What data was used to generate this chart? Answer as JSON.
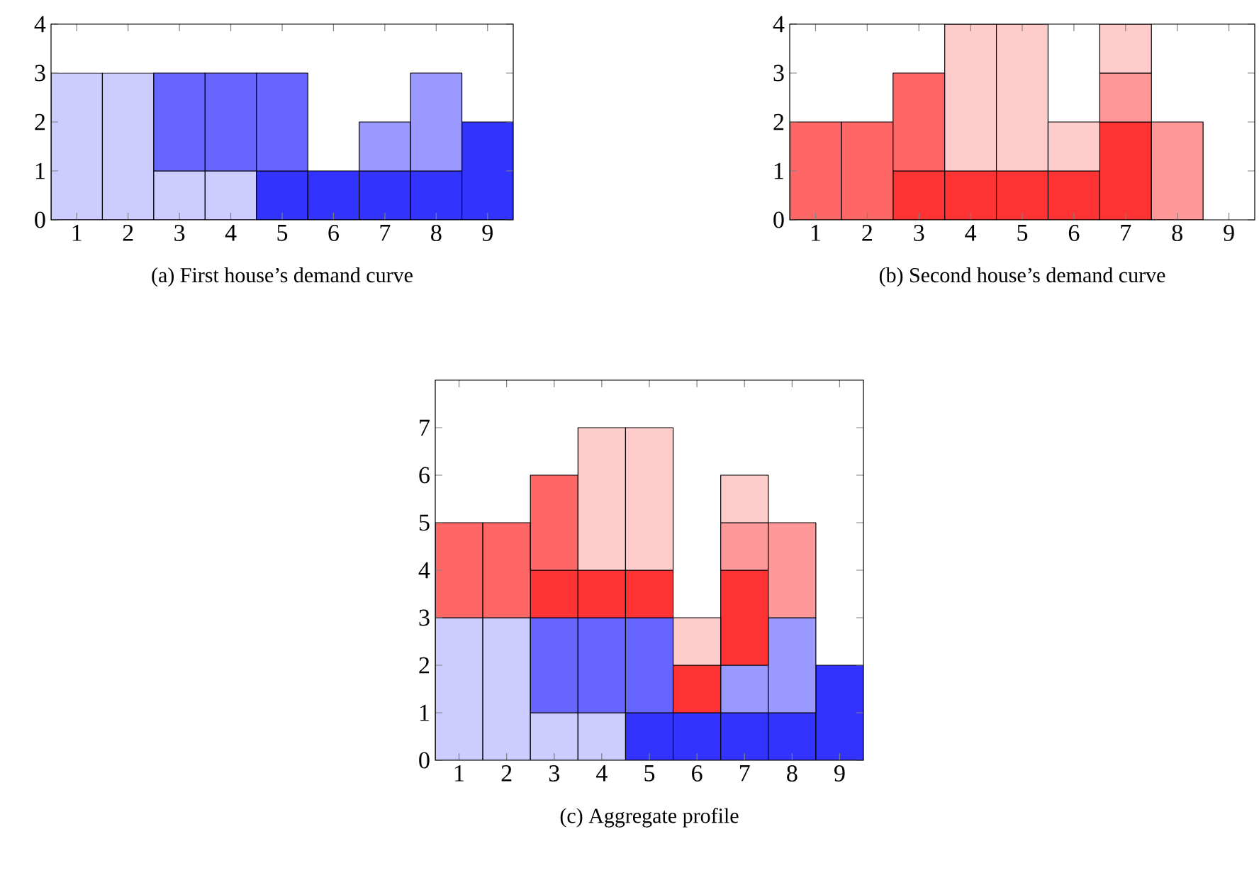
{
  "chart_data": [
    {
      "type": "bar",
      "stacked": true,
      "title": "(a) First house’s demand curve",
      "categories": [
        "1",
        "2",
        "3",
        "4",
        "5",
        "6",
        "7",
        "8",
        "9"
      ],
      "ylim": [
        0,
        4
      ],
      "yticks": [
        0,
        1,
        2,
        3,
        4
      ],
      "series": [
        {
          "color": "#ccccff",
          "values": [
            3,
            3,
            1,
            1,
            null,
            null,
            null,
            null,
            null
          ]
        },
        {
          "color": "#3333ff",
          "values": [
            null,
            null,
            null,
            null,
            1,
            1,
            1,
            1,
            2
          ]
        },
        {
          "color": "#6666ff",
          "values": [
            null,
            null,
            2,
            2,
            2,
            null,
            null,
            null,
            null
          ]
        },
        {
          "color": "#9999ff",
          "values": [
            null,
            null,
            null,
            null,
            null,
            null,
            1,
            2,
            null
          ]
        }
      ]
    },
    {
      "type": "bar",
      "stacked": true,
      "title": "(b) Second house’s demand curve",
      "categories": [
        "1",
        "2",
        "3",
        "4",
        "5",
        "6",
        "7",
        "8",
        "9"
      ],
      "ylim": [
        0,
        4
      ],
      "yticks": [
        0,
        1,
        2,
        3,
        4
      ],
      "series": [
        {
          "color": "#ff3333",
          "values": [
            null,
            null,
            1,
            1,
            1,
            1,
            2,
            null,
            null
          ]
        },
        {
          "color": "#ff6666",
          "values": [
            2,
            2,
            2,
            null,
            null,
            null,
            null,
            null,
            null
          ]
        },
        {
          "color": "#ff9999",
          "values": [
            null,
            null,
            null,
            null,
            null,
            null,
            1,
            2,
            null
          ]
        },
        {
          "color": "#ffcccc",
          "values": [
            null,
            null,
            null,
            3,
            3,
            1,
            1,
            null,
            null
          ]
        }
      ]
    },
    {
      "type": "bar",
      "stacked": true,
      "title": "(c) Aggregate profile",
      "categories": [
        "1",
        "2",
        "3",
        "4",
        "5",
        "6",
        "7",
        "8",
        "9"
      ],
      "ylim": [
        0,
        8
      ],
      "yticks": [
        0,
        1,
        2,
        3,
        4,
        5,
        6,
        7
      ],
      "series": [
        {
          "color": "#ccccff",
          "values": [
            3,
            3,
            1,
            1,
            null,
            null,
            null,
            null,
            null
          ]
        },
        {
          "color": "#3333ff",
          "values": [
            null,
            null,
            null,
            null,
            1,
            1,
            1,
            1,
            2
          ]
        },
        {
          "color": "#6666ff",
          "values": [
            null,
            null,
            2,
            2,
            2,
            null,
            null,
            null,
            null
          ]
        },
        {
          "color": "#9999ff",
          "values": [
            null,
            null,
            null,
            null,
            null,
            null,
            1,
            2,
            null
          ]
        },
        {
          "color": "#ff3333",
          "values": [
            null,
            null,
            1,
            1,
            1,
            1,
            2,
            null,
            null
          ]
        },
        {
          "color": "#ff6666",
          "values": [
            2,
            2,
            2,
            null,
            null,
            null,
            null,
            null,
            null
          ]
        },
        {
          "color": "#ff9999",
          "values": [
            null,
            null,
            null,
            null,
            null,
            null,
            1,
            2,
            null
          ]
        },
        {
          "color": "#ffcccc",
          "values": [
            null,
            null,
            null,
            3,
            3,
            1,
            1,
            null,
            null
          ]
        }
      ]
    }
  ]
}
